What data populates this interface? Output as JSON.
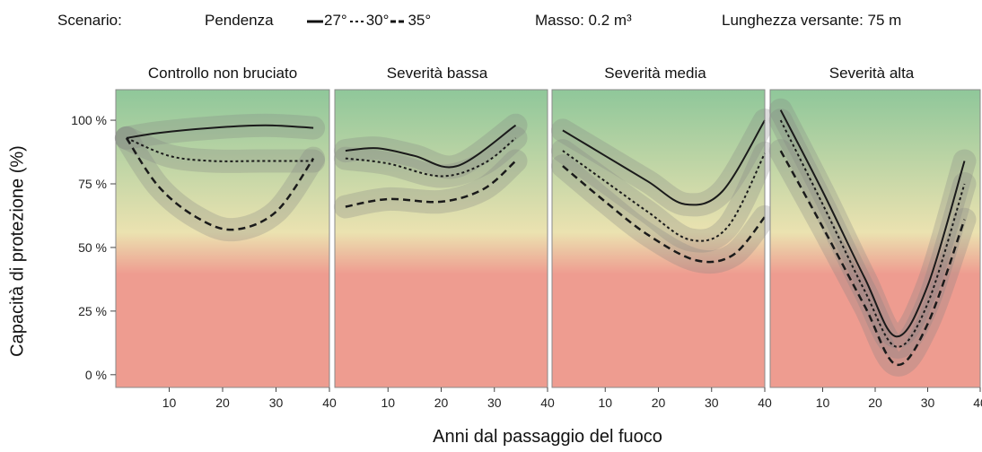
{
  "header": {
    "scenario_label": "Scenario:",
    "slope_label": "Pendenza",
    "mass_label": "Masso: 0.2 m³",
    "length_label": "Lunghezza versante: 75 m",
    "legend": [
      {
        "label": "27°",
        "style": "solid"
      },
      {
        "label": "30°",
        "style": "dotted"
      },
      {
        "label": "35°",
        "style": "dashed"
      }
    ]
  },
  "chart_data": {
    "type": "line",
    "ylabel": "Capacità di protezione (%)",
    "xlabel": "Anni dal passaggio del fuoco",
    "y_ticks": [
      "0 %",
      "25 %",
      "50 %",
      "75 %",
      "100 %"
    ],
    "y_tick_values": [
      0,
      25,
      50,
      75,
      100
    ],
    "x_ticks": [
      "10",
      "20",
      "30",
      "40"
    ],
    "x_tick_values": [
      10,
      20,
      30,
      40
    ],
    "xlim": [
      0,
      40
    ],
    "ylim": [
      -5,
      112
    ],
    "background_gradient": {
      "top": "#8fc79a",
      "middle": "#ebe2b0",
      "bottom": "#ee9c90"
    },
    "panels": [
      {
        "title": "Controllo non bruciato",
        "series": [
          {
            "name": "27°",
            "x": [
              2,
              8,
              18,
              28,
              37
            ],
            "y": [
              93,
              95,
              97,
              98,
              97
            ]
          },
          {
            "name": "30°",
            "x": [
              2,
              10,
              18,
              27,
              37
            ],
            "y": [
              93,
              86,
              84,
              84,
              84
            ]
          },
          {
            "name": "35°",
            "x": [
              2,
              8,
              15,
              22,
              30,
              37
            ],
            "y": [
              93,
              74,
              62,
              57,
              64,
              85
            ]
          }
        ]
      },
      {
        "title": "Severità bassa",
        "series": [
          {
            "name": "27°",
            "x": [
              2,
              8,
              15,
              23,
              34
            ],
            "y": [
              88,
              89,
              86,
              82,
              98
            ]
          },
          {
            "name": "30°",
            "x": [
              2,
              10,
              20,
              28,
              34
            ],
            "y": [
              85,
              83,
              78,
              83,
              93
            ]
          },
          {
            "name": "35°",
            "x": [
              2,
              10,
              20,
              28,
              34
            ],
            "y": [
              66,
              69,
              68,
              73,
              84
            ]
          }
        ]
      },
      {
        "title": "Severità media",
        "series": [
          {
            "name": "27°",
            "x": [
              2,
              10,
              18,
              25,
              32,
              40
            ],
            "y": [
              96,
              86,
              76,
              67,
              72,
              100
            ]
          },
          {
            "name": "30°",
            "x": [
              2,
              10,
              18,
              26,
              33,
              40
            ],
            "y": [
              88,
              76,
              64,
              53,
              58,
              87
            ]
          },
          {
            "name": "35°",
            "x": [
              2,
              10,
              18,
              27,
              34,
              40
            ],
            "y": [
              82,
              68,
              55,
              45,
              47,
              62
            ]
          }
        ]
      },
      {
        "title": "Severità alta",
        "series": [
          {
            "name": "27°",
            "x": [
              2,
              10,
              18,
              24,
              30,
              37
            ],
            "y": [
              104,
              72,
              38,
              15,
              35,
              84
            ]
          },
          {
            "name": "30°",
            "x": [
              2,
              10,
              18,
              24,
              30,
              37
            ],
            "y": [
              100,
              67,
              33,
              11,
              28,
              75
            ]
          },
          {
            "name": "35°",
            "x": [
              2,
              10,
              18,
              24,
              30,
              37
            ],
            "y": [
              88,
              58,
              27,
              4,
              20,
              61
            ]
          }
        ]
      }
    ]
  }
}
